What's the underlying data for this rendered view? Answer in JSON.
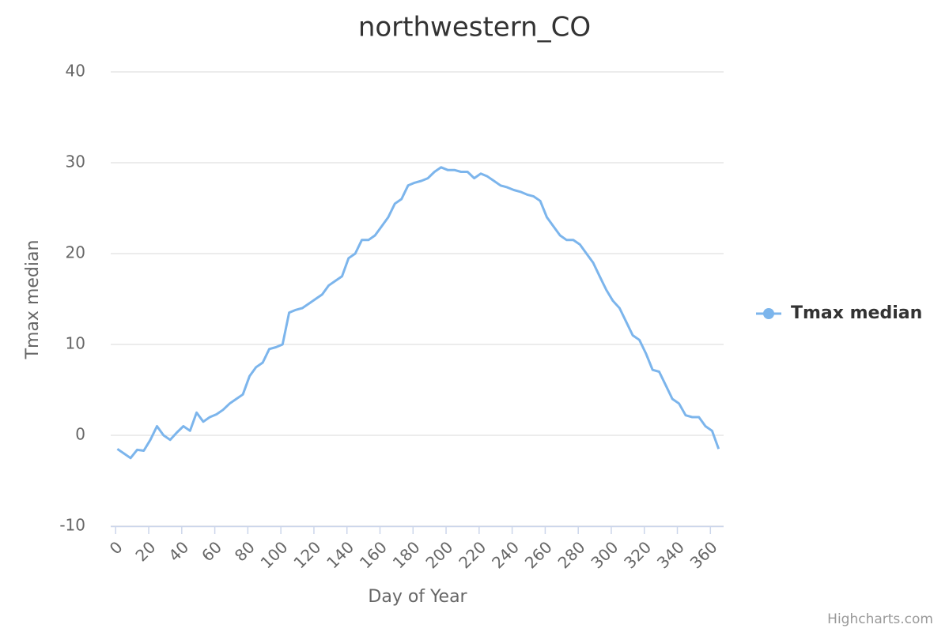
{
  "chart_data": {
    "type": "line",
    "title": "northwestern_CO",
    "x_label": "Day of Year",
    "y_label": "Tmax median",
    "credits": "Highcharts.com",
    "x": [
      1,
      5,
      9,
      13,
      17,
      21,
      25,
      29,
      33,
      37,
      41,
      45,
      49,
      53,
      57,
      61,
      65,
      69,
      73,
      77,
      81,
      85,
      89,
      93,
      97,
      101,
      105,
      109,
      113,
      117,
      121,
      125,
      129,
      133,
      137,
      141,
      145,
      149,
      153,
      157,
      161,
      165,
      169,
      173,
      177,
      181,
      185,
      189,
      193,
      197,
      201,
      205,
      209,
      213,
      217,
      221,
      225,
      229,
      233,
      237,
      241,
      245,
      249,
      253,
      257,
      261,
      265,
      269,
      273,
      277,
      281,
      285,
      289,
      293,
      297,
      301,
      305,
      309,
      313,
      317,
      321,
      325,
      329,
      333,
      337,
      341,
      345,
      349,
      353,
      357,
      361,
      365
    ],
    "series": [
      {
        "name": "Tmax median",
        "color": "#7cb5ec",
        "values": [
          -1.5,
          -2,
          -2.5,
          -1.6,
          -1.7,
          -0.5,
          1,
          0,
          -0.5,
          0.3,
          1,
          0.5,
          2.5,
          1.5,
          2,
          2.3,
          2.8,
          3.5,
          4,
          4.5,
          6.5,
          7.5,
          8,
          9.5,
          9.7,
          10,
          13.5,
          13.8,
          14,
          14.5,
          15,
          15.5,
          16.5,
          17,
          17.5,
          19.5,
          20,
          21.5,
          21.5,
          22,
          23,
          24,
          25.5,
          26,
          27.5,
          27.8,
          28,
          28.3,
          29,
          29.5,
          29.2,
          29.2,
          29,
          29,
          28.3,
          28.8,
          28.5,
          28,
          27.5,
          27.3,
          27,
          26.8,
          26.5,
          26.3,
          25.8,
          24,
          23,
          22,
          21.5,
          21.5,
          21,
          20,
          19,
          17.5,
          16,
          14.8,
          14,
          12.5,
          11,
          10.5,
          9,
          7.2,
          7,
          5.5,
          4,
          3.5,
          2.2,
          2,
          2,
          1,
          0.5,
          -1.5
        ]
      }
    ],
    "xlim": [
      -3,
      368
    ],
    "ylim": [
      -10,
      40
    ],
    "xticks": [
      0,
      20,
      40,
      60,
      80,
      100,
      120,
      140,
      160,
      180,
      200,
      220,
      240,
      260,
      280,
      300,
      320,
      340,
      360
    ],
    "yticks": [
      -10,
      0,
      10,
      20,
      30,
      40
    ],
    "grid": true,
    "legend": "right"
  }
}
